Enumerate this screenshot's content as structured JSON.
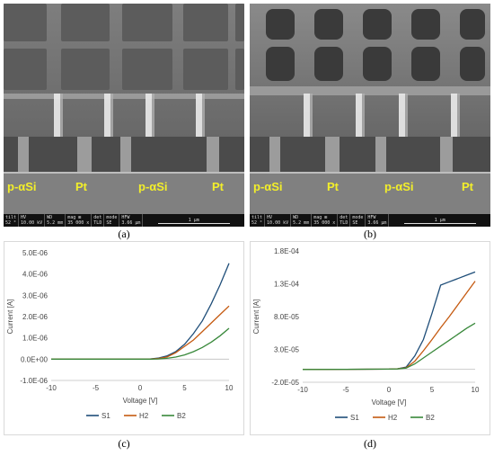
{
  "panels": {
    "a": {
      "caption": "(a)"
    },
    "b": {
      "caption": "(b)"
    },
    "c": {
      "caption": "(c)"
    },
    "d": {
      "caption": "(d)"
    }
  },
  "sem": {
    "labels": [
      "p-αSi",
      "Pt",
      "p-αSi",
      "Pt"
    ],
    "infobar": {
      "tilt": [
        "tilt",
        "52 °"
      ],
      "hv": [
        "HV",
        "10.00 kV"
      ],
      "wd": [
        "WD",
        "5.2 mm"
      ],
      "mag": [
        "mag ⊞",
        "35 000 x"
      ],
      "det": [
        "det",
        "TLD"
      ],
      "mode": [
        "mode",
        "SE"
      ],
      "hfw": [
        "HFW",
        "3.66 μm"
      ],
      "scale": "1 μm"
    }
  },
  "chart_data": [
    {
      "type": "line",
      "panel": "c",
      "xlabel": "Voltage [V]",
      "ylabel": "Current [A]",
      "xlim": [
        -10,
        10
      ],
      "ylim": [
        -1e-06,
        5e-06
      ],
      "xticks": [
        -10,
        -5,
        0,
        5,
        10
      ],
      "yticks": [
        -1e-06,
        0,
        1e-06,
        2e-06,
        3e-06,
        4e-06,
        5e-06
      ],
      "ytick_labels": [
        "-1.0E-06",
        "0.0E+00",
        "1.0E-06",
        "2.0E-06",
        "3.0E-06",
        "4.0E-06",
        "5.0E-06"
      ],
      "xtick_labels": [
        "-10",
        "-5",
        "0",
        "5",
        "10"
      ],
      "legend_position": "bottom",
      "series": [
        {
          "name": "S1",
          "color": "#1f4e79",
          "x": [
            -10,
            -5,
            0,
            1,
            2,
            3,
            4,
            5,
            6,
            7,
            8,
            9,
            10
          ],
          "y": [
            0,
            0,
            0,
            0.0,
            5e-08,
            1.5e-07,
            3.5e-07,
            7e-07,
            1.2e-06,
            1.8e-06,
            2.6e-06,
            3.5e-06,
            4.5e-06
          ]
        },
        {
          "name": "H2",
          "color": "#c55a11",
          "x": [
            -10,
            -5,
            0,
            1,
            2,
            3,
            4,
            5,
            6,
            7,
            8,
            9,
            10
          ],
          "y": [
            0,
            0,
            0,
            0.0,
            3e-08,
            1e-07,
            3e-07,
            6e-07,
            9e-07,
            1.3e-06,
            1.7e-06,
            2.1e-06,
            2.5e-06
          ]
        },
        {
          "name": "B2",
          "color": "#38883a",
          "x": [
            -10,
            -5,
            0,
            1,
            2,
            3,
            4,
            5,
            6,
            7,
            8,
            9,
            10
          ],
          "y": [
            0,
            0,
            0,
            0.0,
            1e-08,
            4e-08,
            1e-07,
            2e-07,
            3.5e-07,
            5.5e-07,
            8e-07,
            1.1e-06,
            1.45e-06
          ]
        }
      ]
    },
    {
      "type": "line",
      "panel": "d",
      "xlabel": "Voltage [V]",
      "ylabel": "Current [A]",
      "xlim": [
        -10,
        10
      ],
      "ylim": [
        -2e-05,
        0.00018
      ],
      "xticks": [
        -10,
        -5,
        0,
        5,
        10
      ],
      "yticks": [
        -2e-05,
        3e-05,
        8e-05,
        0.00013,
        0.00018
      ],
      "ytick_labels": [
        "-2.0E-05",
        "3.0E-05",
        "8.0E-05",
        "1.3E-04",
        "1.8E-04"
      ],
      "xtick_labels": [
        "-10",
        "-5",
        "0",
        "5",
        "10"
      ],
      "legend_position": "bottom",
      "series": [
        {
          "name": "S1",
          "color": "#1f4e79",
          "x": [
            -10,
            -5,
            0,
            1,
            2,
            3,
            4,
            5,
            6,
            7,
            8,
            9,
            10
          ],
          "y": [
            -5e-07,
            -3e-07,
            0,
            5e-07,
            3e-06,
            2e-05,
            4.5e-05,
            8.5e-05,
            0.000128,
            0.000133,
            0.000138,
            0.000143,
            0.000148
          ]
        },
        {
          "name": "H2",
          "color": "#c55a11",
          "x": [
            -10,
            -5,
            0,
            1,
            2,
            3,
            4,
            5,
            6,
            7,
            8,
            9,
            10
          ],
          "y": [
            -5e-07,
            -3e-07,
            0,
            5e-07,
            2e-06,
            1.2e-05,
            2.8e-05,
            4.5e-05,
            6.3e-05,
            8e-05,
            9.8e-05,
            0.000116,
            0.000134
          ]
        },
        {
          "name": "B2",
          "color": "#38883a",
          "x": [
            -10,
            -5,
            0,
            1,
            2,
            3,
            4,
            5,
            6,
            7,
            8,
            9,
            10
          ],
          "y": [
            -5e-07,
            -3e-07,
            0,
            3e-07,
            1.5e-06,
            8e-06,
            1.7e-05,
            2.6e-05,
            3.5e-05,
            4.4e-05,
            5.3e-05,
            6.2e-05,
            7e-05
          ]
        }
      ]
    }
  ]
}
